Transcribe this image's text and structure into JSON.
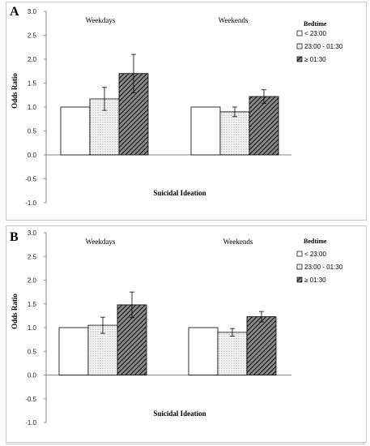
{
  "chart_data": [
    {
      "panel": "A",
      "type": "bar",
      "groups": [
        "Weekdays",
        "Weekends"
      ],
      "series": [
        {
          "name": "< 23:00",
          "values": [
            1.0,
            1.0
          ],
          "err": [
            0,
            0
          ],
          "pattern": "none"
        },
        {
          "name": "23:00 - 01:30",
          "values": [
            1.17,
            0.9
          ],
          "err": [
            0.24,
            0.1
          ],
          "pattern": "dots"
        },
        {
          "name": "≥ 01:30",
          "values": [
            1.7,
            1.22
          ],
          "err": [
            0.4,
            0.14
          ],
          "pattern": "hatch"
        }
      ],
      "ylabel": "Odds Ratio",
      "xlabel": "Suicidal Ideation",
      "legend_title": "Bedtime",
      "legend_position": "right",
      "ylim": [
        -1.0,
        3.0
      ],
      "yticks": [
        "3.0",
        "2.5",
        "2.0",
        "1.5",
        "1.0",
        "0.5",
        "0.0",
        "-0.5",
        "-1.0"
      ],
      "grid": false
    },
    {
      "panel": "B",
      "type": "bar",
      "groups": [
        "Weekdays",
        "Weekends"
      ],
      "series": [
        {
          "name": "< 23:00",
          "values": [
            1.0,
            1.0
          ],
          "err": [
            0,
            0
          ],
          "pattern": "none"
        },
        {
          "name": "23:00 - 01:30",
          "values": [
            1.05,
            0.9
          ],
          "err": [
            0.17,
            0.08
          ],
          "pattern": "dots"
        },
        {
          "name": "≥ 01:30",
          "values": [
            1.48,
            1.23
          ],
          "err": [
            0.27,
            0.11
          ],
          "pattern": "hatch"
        }
      ],
      "ylabel": "Odds Ratio",
      "xlabel": "Suicidal Ideation",
      "legend_title": "Bedtime",
      "legend_position": "right",
      "ylim": [
        -1.0,
        3.0
      ],
      "yticks": [
        "3.0",
        "2.5",
        "2.0",
        "1.5",
        "1.0",
        "0.5",
        "0.0",
        "-0.5",
        "-1.0"
      ],
      "grid": false
    }
  ],
  "colors": {
    "bar_fill": "#ffffff",
    "bar_edge": "#000000",
    "dot": "#6e6e6e",
    "hatch": "#111111",
    "hatch_bg": "#8a8a8a",
    "axis": "#888888"
  }
}
